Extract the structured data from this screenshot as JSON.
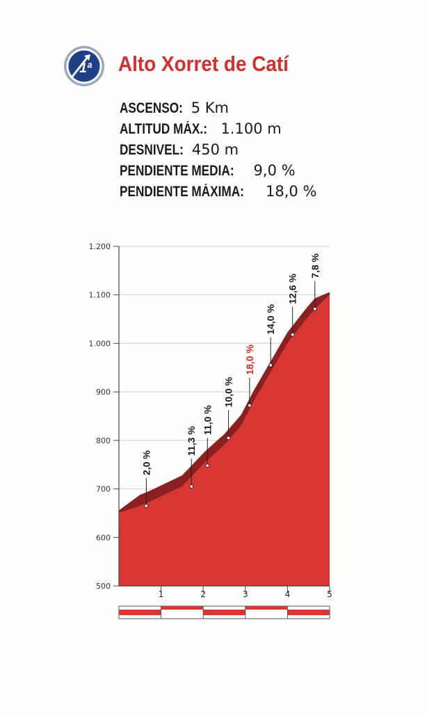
{
  "header": {
    "category_badge": "1ª",
    "climb_name": "Alto Xorret de Catí"
  },
  "stats": [
    {
      "label": "ASCENSO:",
      "value": "5 Km"
    },
    {
      "label": "ALTITUD MÁX.:",
      "value": "1.100 m"
    },
    {
      "label": "DESNIVEL:",
      "value": "450 m"
    },
    {
      "label": "PENDIENTE MEDIA:",
      "value": "9,0 %"
    },
    {
      "label": "PENDIENTE MÁXIMA:",
      "value": "18,0 %"
    }
  ],
  "colors": {
    "accent": "#d32f2f",
    "profile_fill": "#d93632",
    "profile_shadow": "#8c1f1f",
    "badge_blue": "#1f3f86"
  },
  "chart_data": {
    "type": "area",
    "title": "",
    "xlabel": "",
    "ylabel": "",
    "xlim": [
      0,
      5
    ],
    "ylim": [
      500,
      1200
    ],
    "y_ticks": [
      500,
      600,
      700,
      800,
      900,
      1000,
      1100,
      1200
    ],
    "y_tick_labels": [
      "500",
      "600",
      "700",
      "800",
      "900",
      "1.000",
      "1.100",
      "1.200"
    ],
    "x_ticks": [
      1,
      2,
      3,
      4,
      5
    ],
    "x_tick_labels": [
      "1",
      "2",
      "3",
      "4",
      "5"
    ],
    "grid": "horizontal",
    "profile": {
      "x": [
        0,
        0.5,
        0.65,
        0.9,
        1.5,
        2.05,
        2.5,
        2.9,
        3.2,
        3.6,
        4.0,
        4.45,
        4.65,
        5.0
      ],
      "y": [
        650,
        665,
        670,
        680,
        705,
        755,
        790,
        830,
        880,
        940,
        1000,
        1050,
        1070,
        1100
      ]
    },
    "segments": [
      {
        "x": 0.65,
        "y": 665,
        "label": "2,0 %",
        "highlight": false
      },
      {
        "x": 1.72,
        "y": 705,
        "label": "11,3 %",
        "highlight": false
      },
      {
        "x": 2.1,
        "y": 748,
        "label": "11,0 %",
        "highlight": false
      },
      {
        "x": 2.6,
        "y": 805,
        "label": "10,0 %",
        "highlight": false
      },
      {
        "x": 3.1,
        "y": 872,
        "label": "18,0 %",
        "highlight": true
      },
      {
        "x": 3.6,
        "y": 955,
        "label": "14,0 %",
        "highlight": false
      },
      {
        "x": 4.12,
        "y": 1018,
        "label": "12,6 %",
        "highlight": false
      },
      {
        "x": 4.65,
        "y": 1071,
        "label": "7,8 %",
        "highlight": false
      }
    ],
    "km_bar": [
      {
        "from": 0,
        "to": 1,
        "color": "red"
      },
      {
        "from": 1,
        "to": 2,
        "color": "white"
      },
      {
        "from": 2,
        "to": 3,
        "color": "red"
      },
      {
        "from": 3,
        "to": 4,
        "color": "white"
      },
      {
        "from": 4,
        "to": 5,
        "color": "red"
      }
    ]
  }
}
